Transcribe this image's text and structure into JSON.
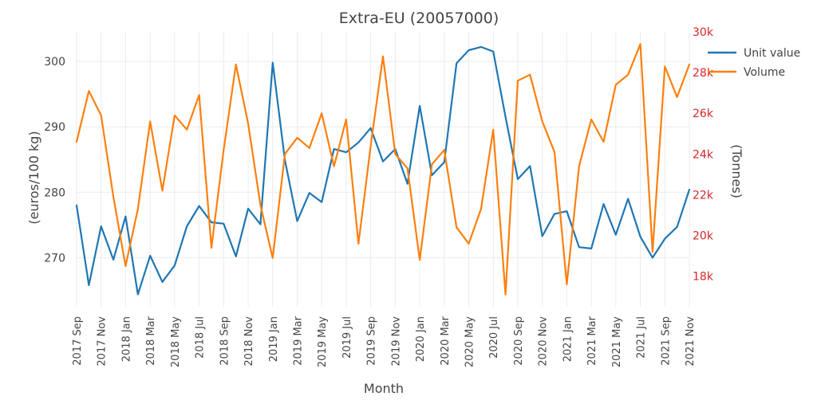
{
  "chart_data": {
    "type": "line",
    "title": "Extra-EU (20057000)",
    "xlabel": "Month",
    "ylabel": "(euros/100 kg)",
    "y2label": "(Tonnes)",
    "legend_position": "top-right",
    "grid": true,
    "x": [
      "2017 Sep",
      "2017 Oct",
      "2017 Nov",
      "2017 Dec",
      "2018 Jan",
      "2018 Feb",
      "2018 Mar",
      "2018 Apr",
      "2018 May",
      "2018 Jun",
      "2018 Jul",
      "2018 Aug",
      "2018 Sep",
      "2018 Oct",
      "2018 Nov",
      "2018 Dec",
      "2019 Jan",
      "2019 Feb",
      "2019 Mar",
      "2019 Apr",
      "2019 May",
      "2019 Jun",
      "2019 Jul",
      "2019 Aug",
      "2019 Sep",
      "2019 Oct",
      "2019 Nov",
      "2019 Dec",
      "2020 Jan",
      "2020 Feb",
      "2020 Mar",
      "2020 Apr",
      "2020 May",
      "2020 Jun",
      "2020 Jul",
      "2020 Aug",
      "2020 Sep",
      "2020 Oct",
      "2020 Nov",
      "2020 Dec",
      "2021 Jan",
      "2021 Feb",
      "2021 Mar",
      "2021 Apr",
      "2021 May",
      "2021 Jun",
      "2021 Jul",
      "2021 Aug",
      "2021 Sep",
      "2021 Oct",
      "2021 Nov"
    ],
    "x_tick_labels": [
      "2017 Sep",
      "2017 Nov",
      "2018 Jan",
      "2018 Mar",
      "2018 May",
      "2018 Jul",
      "2018 Sep",
      "2018 Nov",
      "2019 Jan",
      "2019 Mar",
      "2019 May",
      "2019 Jul",
      "2019 Sep",
      "2019 Nov",
      "2020 Jan",
      "2020 Mar",
      "2020 May",
      "2020 Jul",
      "2020 Sep",
      "2020 Nov",
      "2021 Jan",
      "2021 Mar",
      "2021 May",
      "2021 Jul",
      "2021 Sep",
      "2021 Nov"
    ],
    "y_ticks": [
      270,
      280,
      290,
      300
    ],
    "y_tick_labels": [
      "270",
      "280",
      "290",
      "300"
    ],
    "ylim": [
      262.5,
      304.5
    ],
    "y2_ticks": [
      18000,
      20000,
      22000,
      24000,
      26000,
      28000,
      30000
    ],
    "y2_tick_labels": [
      "18k",
      "20k",
      "22k",
      "24k",
      "26k",
      "28k",
      "30k"
    ],
    "y2lim": [
      16500,
      30000
    ],
    "series": [
      {
        "name": "Unit value",
        "axis": "y",
        "color": "#1f77b4",
        "values": [
          278.0,
          265.8,
          274.8,
          269.7,
          276.3,
          264.4,
          270.3,
          266.3,
          268.8,
          274.8,
          277.9,
          275.4,
          275.2,
          270.2,
          277.5,
          275.1,
          299.8,
          284.9,
          275.6,
          279.9,
          278.5,
          286.6,
          286.1,
          287.6,
          289.8,
          284.7,
          286.6,
          281.3,
          293.2,
          282.6,
          284.6,
          299.7,
          301.7,
          302.2,
          301.5,
          291.5,
          282.0,
          284.0,
          273.3,
          276.7,
          277.1,
          271.6,
          271.4,
          278.2,
          273.5,
          279.0,
          273.2,
          270.0,
          272.9,
          274.7,
          280.4
        ]
      },
      {
        "name": "Volume",
        "axis": "y2",
        "color": "#ff7f0e",
        "values": [
          24600,
          27100,
          25900,
          21900,
          18500,
          21300,
          25600,
          22200,
          25900,
          25200,
          26900,
          19400,
          24200,
          28400,
          25500,
          21500,
          18900,
          24000,
          24800,
          24300,
          26000,
          23400,
          25700,
          19600,
          24400,
          28800,
          24000,
          23300,
          18800,
          23500,
          24200,
          20400,
          19600,
          21300,
          25200,
          17100,
          27600,
          27900,
          25600,
          24100,
          17600,
          23400,
          25700,
          24600,
          27400,
          27900,
          29400,
          19200,
          28300,
          26800,
          28400
        ]
      }
    ]
  }
}
